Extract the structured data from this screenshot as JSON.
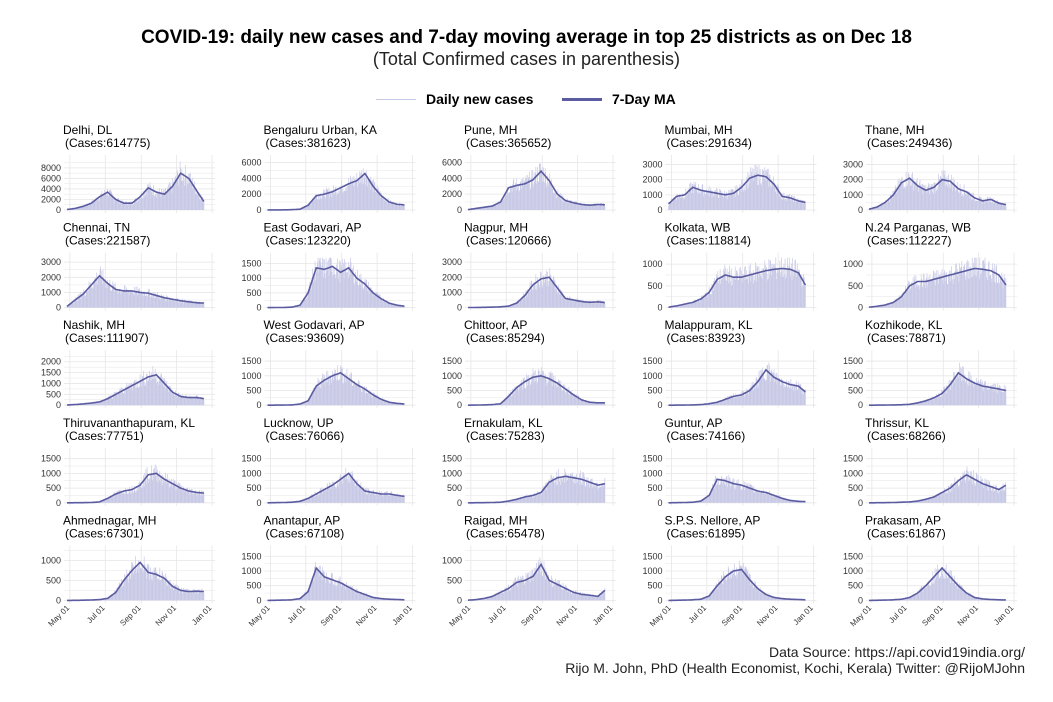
{
  "header": {
    "title": "COVID-19: daily new cases and 7-day moving average in top 25 districts as on Dec 18",
    "subtitle": "(Total Confirmed cases in parenthesis)"
  },
  "legend": {
    "daily_label": "Daily new cases",
    "ma_label": "7-Day MA",
    "daily_color": "#c8c9e6",
    "ma_color": "#5a5ba0"
  },
  "footer": {
    "source": "Data Source: https://api.covid19india.org/",
    "credit": "Rijo M. John, PhD (Health Economist, Kochi, Kerala) Twitter: @RijoMJohn"
  },
  "chart_data": {
    "type": "area",
    "x_ticks": [
      "May 01",
      "Jul 01",
      "Sep 01",
      "Nov 01",
      "Jan 01"
    ],
    "x_range": [
      "2020-04-26",
      "2021-01-01"
    ],
    "x_dates": [
      "2020-04-26",
      "2020-05-10",
      "2020-05-24",
      "2020-06-07",
      "2020-06-21",
      "2020-07-05",
      "2020-07-19",
      "2020-08-02",
      "2020-08-16",
      "2020-08-30",
      "2020-09-13",
      "2020-09-27",
      "2020-10-11",
      "2020-10-25",
      "2020-11-08",
      "2020-11-22",
      "2020-12-06",
      "2020-12-18"
    ],
    "panels": [
      {
        "name": "Delhi, DL",
        "cases": "(Cases:614775)",
        "yticks": [
          0,
          2000,
          4000,
          6000,
          8000
        ],
        "ymax": 9500,
        "ma": [
          100,
          300,
          700,
          1300,
          2500,
          3400,
          2000,
          1300,
          1300,
          2500,
          4200,
          3400,
          3000,
          4500,
          7000,
          6000,
          3600,
          1600
        ]
      },
      {
        "name": "Bengaluru Urban, KA",
        "cases": "(Cases:381623)",
        "yticks": [
          0,
          2000,
          4000,
          6000
        ],
        "ymax": 6300,
        "ma": [
          10,
          15,
          20,
          40,
          100,
          600,
          1800,
          2000,
          2300,
          2800,
          3300,
          3700,
          4600,
          3000,
          1800,
          1000,
          700,
          650
        ]
      },
      {
        "name": "Pune, MH",
        "cases": "(Cases:365652)",
        "yticks": [
          0,
          2000,
          4000,
          6000
        ],
        "ymax": 6300,
        "ma": [
          50,
          200,
          350,
          500,
          1000,
          2800,
          3100,
          3300,
          3800,
          4900,
          3700,
          2000,
          1200,
          900,
          700,
          600,
          700,
          650
        ]
      },
      {
        "name": "Mumbai, MH",
        "cases": "(Cases:291634)",
        "yticks": [
          0,
          1000,
          2000,
          3000
        ],
        "ymax": 3300,
        "ma": [
          400,
          900,
          1000,
          1500,
          1300,
          1200,
          1100,
          1000,
          1100,
          1500,
          2100,
          2300,
          2200,
          1700,
          900,
          800,
          600,
          500
        ]
      },
      {
        "name": "Thane, MH",
        "cases": "(Cases:249436)",
        "yticks": [
          0,
          1000,
          2000,
          3000
        ],
        "ymax": 3300,
        "ma": [
          50,
          200,
          500,
          1000,
          1800,
          2100,
          1600,
          1300,
          1500,
          2000,
          1900,
          1400,
          1200,
          800,
          600,
          700,
          450,
          350
        ]
      },
      {
        "name": "Chennai, TN",
        "cases": "(Cases:221587)",
        "yticks": [
          0,
          1000,
          2000,
          3000
        ],
        "ymax": 3300,
        "ma": [
          80,
          500,
          900,
          1500,
          2100,
          1600,
          1200,
          1100,
          1100,
          1000,
          950,
          800,
          650,
          550,
          450,
          380,
          320,
          300
        ]
      },
      {
        "name": "East Godavari, AP",
        "cases": "(Cases:123220)",
        "yticks": [
          0,
          500,
          1000,
          1500
        ],
        "ymax": 1700,
        "ma": [
          0,
          2,
          5,
          15,
          80,
          500,
          1350,
          1300,
          1400,
          1200,
          1350,
          1000,
          800,
          500,
          300,
          150,
          80,
          50
        ]
      },
      {
        "name": "Nagpur, MH",
        "cases": "(Cases:120666)",
        "yticks": [
          0,
          1000,
          2000,
          3000
        ],
        "ymax": 3300,
        "ma": [
          5,
          10,
          20,
          30,
          50,
          100,
          300,
          800,
          1500,
          1900,
          2000,
          1300,
          600,
          500,
          400,
          350,
          380,
          330
        ]
      },
      {
        "name": "Kolkata, WB",
        "cases": "(Cases:118814)",
        "yticks": [
          0,
          500,
          1000
        ],
        "ymax": 1150,
        "ma": [
          10,
          40,
          80,
          120,
          200,
          350,
          650,
          750,
          700,
          700,
          750,
          800,
          850,
          880,
          900,
          880,
          800,
          520
        ]
      },
      {
        "name": "N.24 Parganas, WB",
        "cases": "(Cases:112227)",
        "yticks": [
          0,
          500,
          1000
        ],
        "ymax": 1150,
        "ma": [
          10,
          30,
          60,
          120,
          250,
          500,
          600,
          600,
          650,
          700,
          750,
          800,
          850,
          900,
          880,
          850,
          750,
          520
        ]
      },
      {
        "name": "Nashik, MH",
        "cases": "(Cases:111907)",
        "yticks": [
          0,
          500,
          1000,
          1500,
          2000
        ],
        "ymax": 2300,
        "ma": [
          10,
          30,
          60,
          100,
          150,
          300,
          500,
          700,
          900,
          1100,
          1300,
          1400,
          1000,
          600,
          400,
          350,
          350,
          300
        ]
      },
      {
        "name": "West Godavari, AP",
        "cases": "(Cases:93609)",
        "yticks": [
          0,
          500,
          1000,
          1500
        ],
        "ymax": 1700,
        "ma": [
          0,
          2,
          5,
          10,
          40,
          150,
          650,
          850,
          1000,
          1100,
          900,
          700,
          550,
          350,
          200,
          100,
          60,
          40
        ]
      },
      {
        "name": "Chittoor, AP",
        "cases": "(Cases:85294)",
        "yticks": [
          0,
          500,
          1000,
          1500
        ],
        "ymax": 1700,
        "ma": [
          0,
          5,
          10,
          20,
          50,
          300,
          600,
          800,
          950,
          1000,
          900,
          750,
          550,
          350,
          180,
          100,
          80,
          80
        ]
      },
      {
        "name": "Malappuram, KL",
        "cases": "(Cases:83923)",
        "yticks": [
          0,
          500,
          1000,
          1500
        ],
        "ymax": 1700,
        "ma": [
          0,
          2,
          5,
          10,
          20,
          50,
          100,
          200,
          300,
          350,
          500,
          800,
          1200,
          950,
          800,
          700,
          650,
          450
        ]
      },
      {
        "name": "Kozhikode, KL",
        "cases": "(Cases:78871)",
        "yticks": [
          0,
          500,
          1000,
          1500
        ],
        "ymax": 1700,
        "ma": [
          0,
          2,
          5,
          10,
          15,
          30,
          80,
          150,
          250,
          400,
          700,
          1100,
          900,
          750,
          650,
          600,
          550,
          500
        ]
      },
      {
        "name": "Thiruvananthapuram, KL",
        "cases": "(Cases:77751)",
        "yticks": [
          0,
          500,
          1000,
          1500
        ],
        "ymax": 1700,
        "ma": [
          0,
          2,
          5,
          10,
          30,
          150,
          300,
          400,
          450,
          600,
          950,
          1000,
          800,
          650,
          500,
          400,
          350,
          330
        ]
      },
      {
        "name": "Lucknow, UP",
        "cases": "(Cases:76066)",
        "yticks": [
          0,
          500,
          1000,
          1500
        ],
        "ymax": 1700,
        "ma": [
          0,
          5,
          10,
          20,
          50,
          150,
          300,
          450,
          600,
          800,
          1000,
          650,
          400,
          350,
          300,
          300,
          250,
          220
        ]
      },
      {
        "name": "Ernakulam, KL",
        "cases": "(Cases:75283)",
        "yticks": [
          0,
          500,
          1000,
          1500
        ],
        "ymax": 1700,
        "ma": [
          0,
          2,
          5,
          10,
          20,
          60,
          120,
          200,
          250,
          350,
          700,
          850,
          900,
          850,
          800,
          700,
          600,
          650
        ]
      },
      {
        "name": "Guntur, AP",
        "cases": "(Cases:74166)",
        "yticks": [
          0,
          500,
          1000,
          1500
        ],
        "ymax": 1700,
        "ma": [
          0,
          5,
          10,
          20,
          60,
          250,
          800,
          750,
          650,
          600,
          500,
          400,
          350,
          250,
          150,
          80,
          50,
          40
        ]
      },
      {
        "name": "Thrissur, KL",
        "cases": "(Cases:68266)",
        "yticks": [
          0,
          500,
          1000,
          1500
        ],
        "ymax": 1700,
        "ma": [
          0,
          2,
          5,
          10,
          20,
          30,
          60,
          120,
          200,
          350,
          500,
          750,
          950,
          800,
          650,
          550,
          450,
          600
        ]
      },
      {
        "name": "Ahmednagar, MH",
        "cases": "(Cases:67301)",
        "yticks": [
          0,
          500,
          1000
        ],
        "ymax": 1250,
        "ma": [
          0,
          2,
          5,
          10,
          20,
          50,
          200,
          500,
          750,
          950,
          700,
          650,
          550,
          350,
          250,
          220,
          230,
          220
        ]
      },
      {
        "name": "Anantapur, AP",
        "cases": "(Cases:67108)",
        "yticks": [
          0,
          500,
          1000,
          1500
        ],
        "ymax": 1700,
        "ma": [
          0,
          5,
          10,
          20,
          60,
          300,
          1100,
          800,
          700,
          600,
          450,
          300,
          200,
          100,
          60,
          40,
          30,
          20
        ]
      },
      {
        "name": "Raigad, MH",
        "cases": "(Cases:65478)",
        "yticks": [
          0,
          500,
          1000
        ],
        "ymax": 1250,
        "ma": [
          5,
          20,
          50,
          100,
          200,
          300,
          450,
          500,
          600,
          900,
          500,
          400,
          300,
          200,
          150,
          130,
          100,
          250
        ]
      },
      {
        "name": "S.P.S. Nellore, AP",
        "cases": "(Cases:61895)",
        "yticks": [
          0,
          500,
          1000,
          1500
        ],
        "ymax": 1700,
        "ma": [
          0,
          5,
          10,
          20,
          40,
          150,
          500,
          800,
          1000,
          1050,
          700,
          400,
          200,
          100,
          60,
          40,
          30,
          20
        ]
      },
      {
        "name": "Prakasam, AP",
        "cases": "(Cases:61867)",
        "yticks": [
          0,
          500,
          1000,
          1500
        ],
        "ymax": 1700,
        "ma": [
          0,
          5,
          10,
          20,
          40,
          100,
          250,
          500,
          800,
          1100,
          800,
          500,
          250,
          100,
          50,
          30,
          20,
          15
        ]
      }
    ]
  }
}
